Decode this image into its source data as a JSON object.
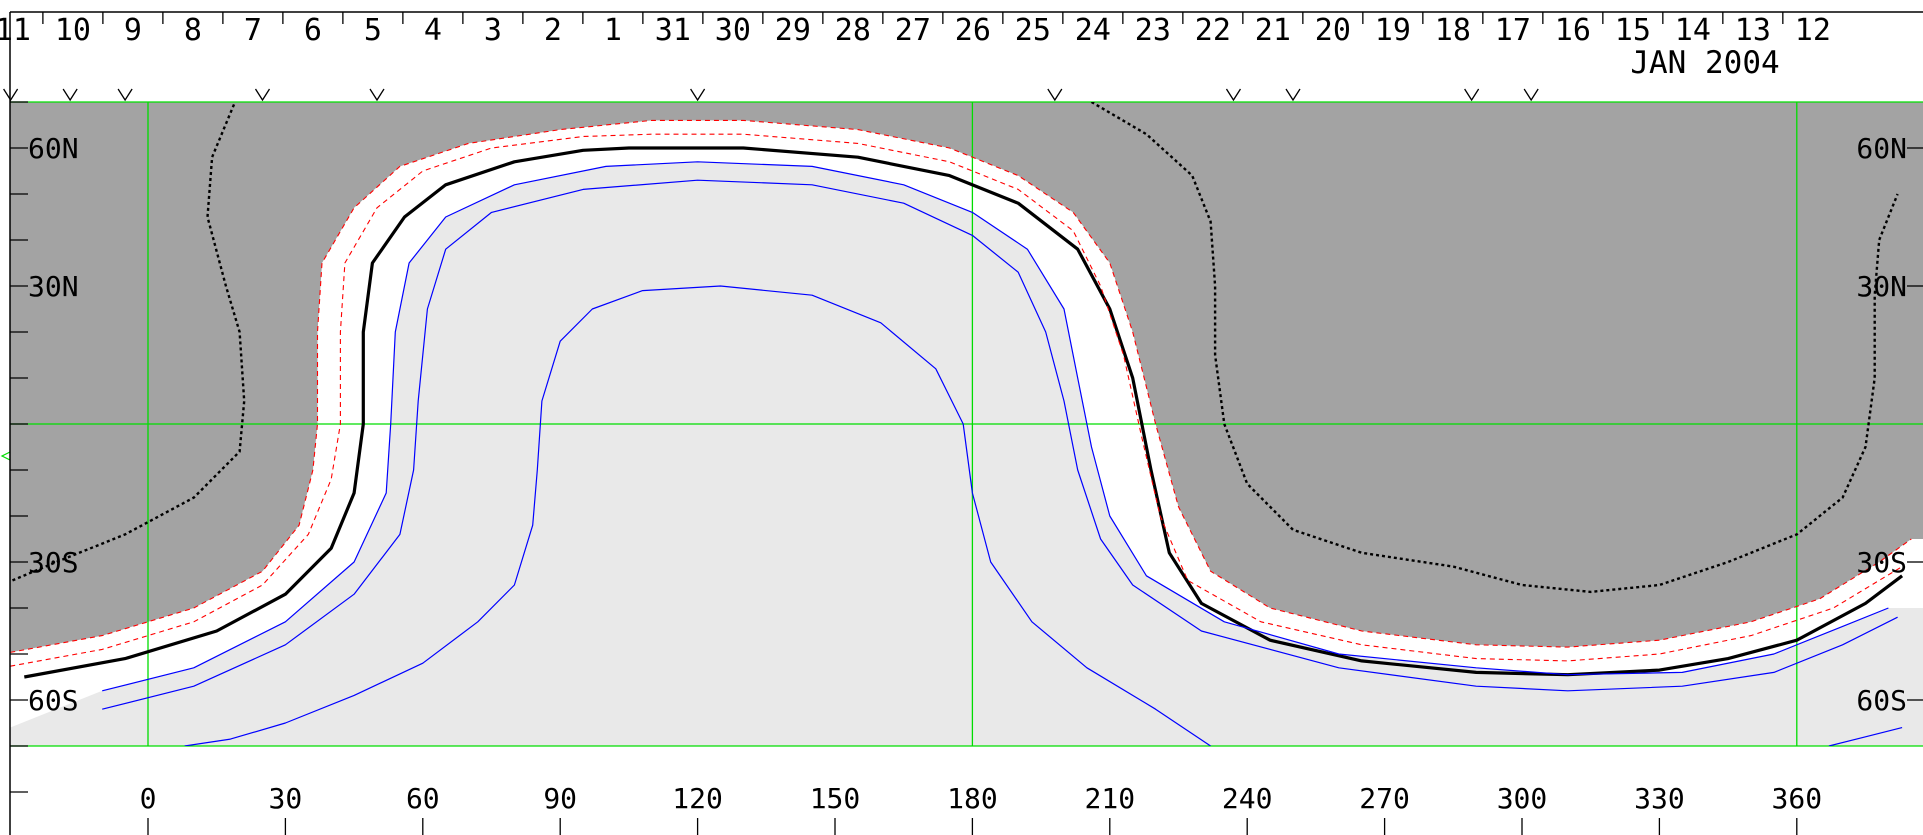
{
  "chart_data": {
    "type": "line",
    "title": "",
    "month_label": "JAN 2004",
    "x_axis": {
      "ticks": [
        0,
        30,
        60,
        90,
        120,
        150,
        180,
        210,
        240,
        270,
        300,
        330,
        360
      ],
      "tick_labels": [
        "0",
        "30",
        "60",
        "90",
        "120",
        "150",
        "180",
        "210",
        "240",
        "270",
        "300",
        "330",
        "360"
      ],
      "range": [
        -32,
        385
      ]
    },
    "y_axis": {
      "range": [
        -70,
        70
      ],
      "ticks": [
        -60,
        -30,
        30,
        60
      ],
      "tick_labels": [
        "60S",
        "30S",
        "30N",
        "60N"
      ],
      "minor_step": 10
    },
    "date_axis": {
      "labels": [
        "11",
        "10",
        "9",
        "8",
        "7",
        "6",
        "5",
        "4",
        "3",
        "2",
        "1",
        "31",
        "30",
        "29",
        "28",
        "27",
        "26",
        "25",
        "24",
        "23",
        "22",
        "21",
        "20",
        "19",
        "18",
        "17",
        "16",
        "15",
        "14",
        "13",
        "12"
      ],
      "first_label_lon": -29.5,
      "spacing_deg": 13.1
    },
    "markers_lon": [
      -30,
      -17,
      -5,
      25,
      50,
      120,
      198,
      237,
      250,
      289,
      302
    ],
    "grid": {
      "lon": [
        0,
        180,
        360
      ],
      "lat": [
        0
      ],
      "color": "#00dd00"
    },
    "shading": {
      "night": "#a3a3a3",
      "day": "#e9e9e9",
      "twilight": "#ffffff"
    },
    "series": [
      {
        "style": "terminator-day-edge",
        "color": "#000000",
        "points": [
          [
            -27,
            -55
          ],
          [
            -5,
            -51
          ],
          [
            15,
            -45
          ],
          [
            30,
            -37
          ],
          [
            40,
            -27
          ],
          [
            45,
            -15
          ],
          [
            47,
            0
          ],
          [
            47,
            20
          ],
          [
            49,
            35
          ],
          [
            56,
            45
          ],
          [
            65,
            52
          ],
          [
            80,
            57
          ],
          [
            95,
            59.5
          ],
          [
            105,
            60
          ],
          [
            130,
            60
          ],
          [
            155,
            58
          ],
          [
            175,
            54
          ],
          [
            190,
            48
          ],
          [
            203,
            38
          ],
          [
            210,
            25
          ],
          [
            215,
            10
          ],
          [
            219,
            -10
          ],
          [
            223,
            -28
          ],
          [
            230,
            -39
          ],
          [
            245,
            -47
          ],
          [
            265,
            -51.5
          ],
          [
            290,
            -54
          ],
          [
            310,
            -54.5
          ],
          [
            330,
            -53.5
          ],
          [
            345,
            -51
          ],
          [
            360,
            -47
          ],
          [
            375,
            -39
          ],
          [
            383,
            -33
          ]
        ]
      },
      {
        "style": "terminator-dotted",
        "color": "#000000",
        "points": [
          [
            -32,
            -35
          ],
          [
            -20,
            -30
          ],
          [
            -5,
            -24
          ],
          [
            10,
            -16
          ],
          [
            20,
            -6
          ],
          [
            21,
            5
          ],
          [
            20,
            20
          ],
          [
            17,
            30
          ],
          [
            13,
            45
          ],
          [
            14,
            58
          ],
          [
            19,
            70
          ]
        ]
      },
      {
        "style": "terminator-dotted",
        "color": "#000000",
        "points": [
          [
            206,
            70
          ],
          [
            218,
            63
          ],
          [
            228,
            54
          ],
          [
            232,
            44
          ],
          [
            233,
            30
          ],
          [
            233,
            15
          ],
          [
            235,
            0
          ],
          [
            240,
            -13
          ],
          [
            250,
            -23
          ],
          [
            265,
            -28
          ],
          [
            285,
            -31
          ],
          [
            300,
            -35
          ],
          [
            315,
            -36.5
          ],
          [
            330,
            -35
          ],
          [
            345,
            -30
          ],
          [
            360,
            -24
          ],
          [
            370,
            -16
          ],
          [
            375,
            -5
          ],
          [
            377,
            10
          ],
          [
            377,
            28
          ],
          [
            378,
            40
          ],
          [
            382,
            50
          ]
        ]
      },
      {
        "style": "night-edge-dashed",
        "color": "#ff0000",
        "points": [
          [
            -32,
            -50
          ],
          [
            -10,
            -46
          ],
          [
            10,
            -40
          ],
          [
            25,
            -32
          ],
          [
            33,
            -22
          ],
          [
            36,
            -10
          ],
          [
            37,
            0
          ],
          [
            37,
            20
          ],
          [
            38,
            35
          ],
          [
            45,
            47
          ],
          [
            55,
            56
          ],
          [
            70,
            61
          ],
          [
            90,
            64
          ],
          [
            110,
            66
          ],
          [
            130,
            66
          ],
          [
            155,
            64
          ],
          [
            175,
            60
          ],
          [
            190,
            54
          ],
          [
            202,
            46
          ],
          [
            210,
            35
          ],
          [
            215,
            20
          ],
          [
            220,
            0
          ],
          [
            225,
            -18
          ],
          [
            232,
            -32
          ],
          [
            245,
            -40
          ],
          [
            265,
            -45
          ],
          [
            290,
            -48
          ],
          [
            310,
            -48.5
          ],
          [
            330,
            -47
          ],
          [
            350,
            -43
          ],
          [
            365,
            -38
          ],
          [
            378,
            -30
          ],
          [
            385,
            -25
          ]
        ]
      },
      {
        "style": "night-edge-dashed",
        "color": "#ff0000",
        "points": [
          [
            -32,
            -53
          ],
          [
            -10,
            -49
          ],
          [
            10,
            -43
          ],
          [
            25,
            -35
          ],
          [
            35,
            -24
          ],
          [
            40,
            -12
          ],
          [
            42,
            0
          ],
          [
            42,
            20
          ],
          [
            43,
            35
          ],
          [
            50,
            47
          ],
          [
            60,
            55
          ],
          [
            75,
            60
          ],
          [
            95,
            62.5
          ],
          [
            110,
            63
          ],
          [
            130,
            63
          ],
          [
            155,
            61
          ],
          [
            175,
            57
          ],
          [
            190,
            51
          ],
          [
            202,
            42
          ],
          [
            208,
            30
          ],
          [
            213,
            15
          ],
          [
            217,
            -3
          ],
          [
            221,
            -20
          ],
          [
            227,
            -34
          ],
          [
            243,
            -43
          ],
          [
            265,
            -48
          ],
          [
            290,
            -51
          ],
          [
            310,
            -51.5
          ],
          [
            330,
            -50
          ],
          [
            350,
            -46
          ],
          [
            368,
            -40
          ],
          [
            383,
            -31
          ]
        ]
      },
      {
        "style": "day-contour",
        "color": "#0000ff",
        "points": [
          [
            -10,
            -58
          ],
          [
            10,
            -53
          ],
          [
            30,
            -43
          ],
          [
            45,
            -30
          ],
          [
            52,
            -15
          ],
          [
            53,
            0
          ],
          [
            54,
            20
          ],
          [
            57,
            35
          ],
          [
            65,
            45
          ],
          [
            80,
            52
          ],
          [
            100,
            56
          ],
          [
            120,
            57
          ],
          [
            145,
            56
          ],
          [
            165,
            52
          ],
          [
            180,
            46
          ],
          [
            192,
            38
          ],
          [
            200,
            25
          ],
          [
            203,
            10
          ],
          [
            206,
            -5
          ],
          [
            210,
            -20
          ],
          [
            218,
            -33
          ],
          [
            235,
            -43
          ],
          [
            260,
            -50
          ],
          [
            290,
            -53
          ],
          [
            310,
            -54.5
          ],
          [
            335,
            -54
          ],
          [
            355,
            -50
          ],
          [
            370,
            -44
          ],
          [
            380,
            -40
          ]
        ]
      },
      {
        "style": "day-contour",
        "color": "#0000ff",
        "points": [
          [
            -10,
            -62
          ],
          [
            10,
            -57
          ],
          [
            30,
            -48
          ],
          [
            45,
            -37
          ],
          [
            55,
            -24
          ],
          [
            58,
            -10
          ],
          [
            59,
            5
          ],
          [
            61,
            25
          ],
          [
            65,
            38
          ],
          [
            75,
            46
          ],
          [
            95,
            51
          ],
          [
            120,
            53
          ],
          [
            145,
            52
          ],
          [
            165,
            48
          ],
          [
            180,
            41
          ],
          [
            190,
            33
          ],
          [
            196,
            20
          ],
          [
            200,
            5
          ],
          [
            203,
            -10
          ],
          [
            208,
            -25
          ],
          [
            215,
            -35
          ],
          [
            230,
            -45
          ],
          [
            260,
            -53
          ],
          [
            290,
            -57
          ],
          [
            310,
            -58
          ],
          [
            335,
            -57
          ],
          [
            355,
            -54
          ],
          [
            370,
            -48
          ],
          [
            382,
            -42
          ]
        ]
      },
      {
        "style": "day-contour",
        "color": "#0000ff",
        "points": [
          [
            8,
            -70
          ],
          [
            18,
            -68.5
          ],
          [
            30,
            -65
          ],
          [
            45,
            -59
          ],
          [
            60,
            -52
          ],
          [
            72,
            -43
          ],
          [
            80,
            -35
          ],
          [
            84,
            -22
          ],
          [
            85,
            -10
          ],
          [
            86,
            5
          ],
          [
            90,
            18
          ],
          [
            97,
            25
          ],
          [
            108,
            29
          ],
          [
            125,
            30
          ],
          [
            145,
            28
          ],
          [
            160,
            22
          ],
          [
            172,
            12
          ],
          [
            178,
            0
          ],
          [
            180,
            -15
          ],
          [
            184,
            -30
          ],
          [
            193,
            -43
          ],
          [
            205,
            -53
          ],
          [
            220,
            -62
          ],
          [
            232,
            -70
          ]
        ]
      },
      {
        "style": "day-contour",
        "color": "#0000ff",
        "points": [
          [
            367,
            -70
          ],
          [
            375,
            -68
          ],
          [
            383,
            -66
          ]
        ]
      }
    ]
  }
}
